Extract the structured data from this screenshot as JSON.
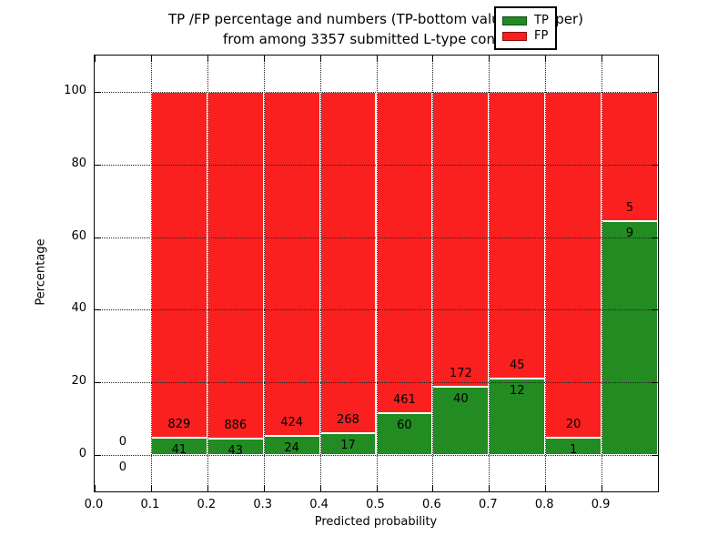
{
  "chart_data": {
    "type": "bar",
    "stacked": true,
    "orientation": "vertical",
    "title": "TP /FP percentage and numbers (TP-bottom value, FP-upper)\nfrom among 3357 submitted L-type contacts",
    "title_lines": [
      "TP /FP percentage and numbers (TP-bottom value, FP-upper)",
      "from among 3357 submitted L-type contacts"
    ],
    "xlabel": "Predicted probability",
    "ylabel": "Percentage",
    "xlim": [
      0.0,
      1.0
    ],
    "ylim": [
      -10,
      110
    ],
    "xticks": [
      0.0,
      0.1,
      0.2,
      0.3,
      0.4,
      0.5,
      0.6,
      0.7,
      0.8,
      0.9
    ],
    "xtick_labels": [
      "0.0",
      "0.1",
      "0.2",
      "0.3",
      "0.4",
      "0.5",
      "0.6",
      "0.7",
      "0.8",
      "0.9"
    ],
    "yticks": [
      0,
      20,
      40,
      60,
      80,
      100
    ],
    "ytick_labels": [
      "0",
      "20",
      "40",
      "60",
      "80",
      "100"
    ],
    "grid": true,
    "legend_position": "upper-right",
    "legend": [
      {
        "label": "TP",
        "color": "#228B22"
      },
      {
        "label": "FP",
        "color": "#FA2020"
      }
    ],
    "total_contacts": 3357,
    "bins": [
      {
        "x_start": 0.0,
        "x_end": 0.1,
        "tp": 0,
        "fp": 0,
        "tp_pct": 0,
        "fp_pct": 0
      },
      {
        "x_start": 0.1,
        "x_end": 0.2,
        "tp": 41,
        "fp": 829,
        "tp_pct": 4.71,
        "fp_pct": 95.29
      },
      {
        "x_start": 0.2,
        "x_end": 0.3,
        "tp": 43,
        "fp": 886,
        "tp_pct": 4.63,
        "fp_pct": 95.37
      },
      {
        "x_start": 0.3,
        "x_end": 0.4,
        "tp": 24,
        "fp": 424,
        "tp_pct": 5.36,
        "fp_pct": 94.64
      },
      {
        "x_start": 0.4,
        "x_end": 0.5,
        "tp": 17,
        "fp": 268,
        "tp_pct": 5.96,
        "fp_pct": 94.04
      },
      {
        "x_start": 0.5,
        "x_end": 0.6,
        "tp": 60,
        "fp": 461,
        "tp_pct": 11.52,
        "fp_pct": 88.48
      },
      {
        "x_start": 0.6,
        "x_end": 0.7,
        "tp": 40,
        "fp": 172,
        "tp_pct": 18.87,
        "fp_pct": 81.13
      },
      {
        "x_start": 0.7,
        "x_end": 0.8,
        "tp": 12,
        "fp": 45,
        "tp_pct": 21.05,
        "fp_pct": 78.95
      },
      {
        "x_start": 0.8,
        "x_end": 0.9,
        "tp": 1,
        "fp": 20,
        "tp_pct": 4.76,
        "fp_pct": 95.24
      },
      {
        "x_start": 0.9,
        "x_end": 1.0,
        "tp": 9,
        "fp": 5,
        "tp_pct": 64.29,
        "fp_pct": 35.71
      }
    ]
  }
}
